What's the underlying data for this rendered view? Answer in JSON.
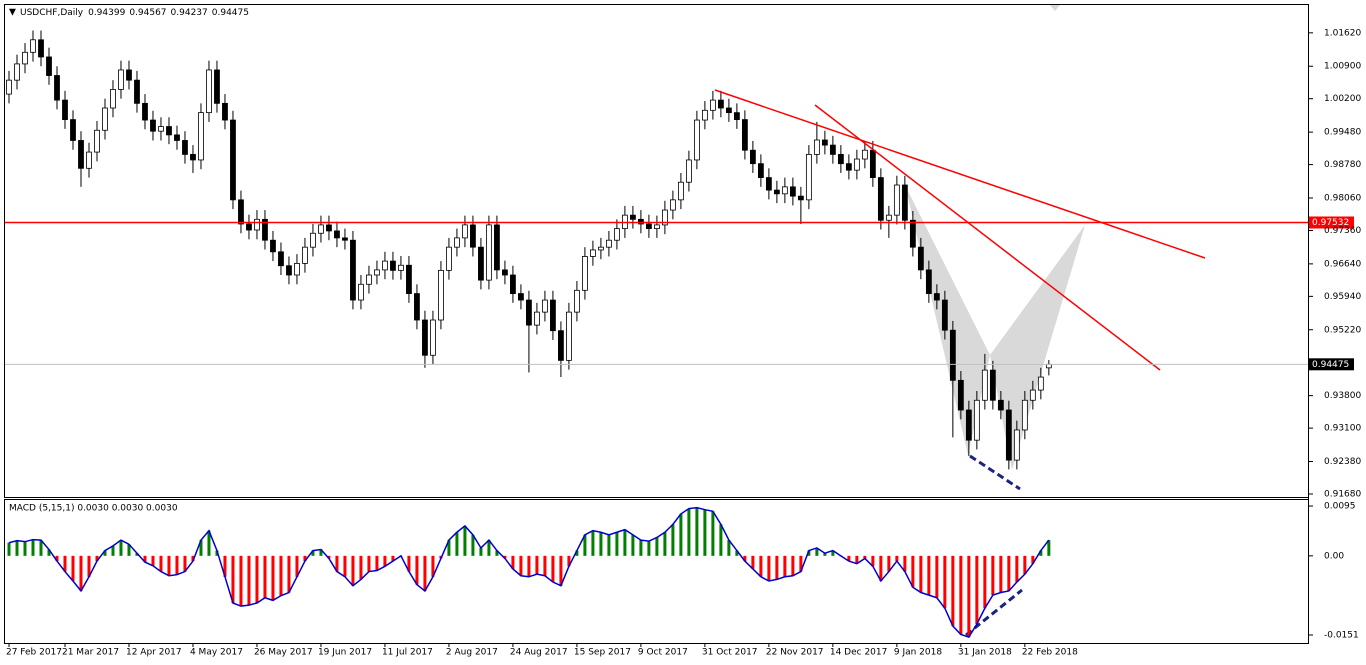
{
  "chart_data": [
    {
      "type": "candlestick",
      "symbol": "USDCHF,Daily",
      "up_color": "#ffffff",
      "down_color": "#000000",
      "outline_color": "#000000",
      "level_color": "#ff0000",
      "levels": [
        0.97532
      ],
      "xlim": [
        -0.5,
        162.4
      ],
      "ylim": [
        0.91615,
        1.0222
      ],
      "yticks": [
        {
          "value": 1.0162,
          "label": "1.01620"
        },
        {
          "value": 1.009,
          "label": "1.00900"
        },
        {
          "value": 1.002,
          "label": "1.00200"
        },
        {
          "value": 0.9948,
          "label": "0.99480"
        },
        {
          "value": 0.9878,
          "label": "0.98780"
        },
        {
          "value": 0.9806,
          "label": "0.98060"
        },
        {
          "value": 0.9736,
          "label": "0.97360"
        },
        {
          "value": 0.9664,
          "label": "0.96640"
        },
        {
          "value": 0.9594,
          "label": "0.95940"
        },
        {
          "value": 0.9522,
          "label": "0.95220"
        },
        {
          "value": 0.938,
          "label": "0.93800"
        },
        {
          "value": 0.931,
          "label": "0.93100"
        },
        {
          "value": 0.9238,
          "label": "0.92380"
        },
        {
          "value": 0.9168,
          "label": "0.91680"
        }
      ],
      "ohlc": [
        [
          1.003,
          1.008,
          1.001,
          1.006
        ],
        [
          1.006,
          1.0115,
          1.004,
          1.0095
        ],
        [
          1.0095,
          1.014,
          1.0075,
          1.012
        ],
        [
          1.012,
          1.0167,
          1.01,
          1.0147
        ],
        [
          1.0147,
          1.0167,
          1.009,
          1.011
        ],
        [
          1.011,
          1.013,
          1.005,
          1.007
        ],
        [
          1.007,
          1.009,
          0.9997,
          1.0017
        ],
        [
          1.0017,
          1.0037,
          0.9955,
          0.9975
        ],
        [
          0.9975,
          0.9995,
          0.991,
          0.993
        ],
        [
          0.993,
          0.995,
          0.983,
          0.987
        ],
        [
          0.987,
          0.9925,
          0.985,
          0.9905
        ],
        [
          0.9905,
          0.9972,
          0.9885,
          0.9952
        ],
        [
          0.9952,
          1.002,
          0.9932,
          1.0
        ],
        [
          1.0,
          1.006,
          0.998,
          1.004
        ],
        [
          1.004,
          1.0102,
          1.002,
          1.0082
        ],
        [
          1.0082,
          1.0102,
          1.004,
          1.006
        ],
        [
          1.006,
          1.008,
          0.999,
          1.001
        ],
        [
          1.001,
          1.003,
          0.9954,
          0.9974
        ],
        [
          0.9974,
          0.9994,
          0.993,
          0.995
        ],
        [
          0.995,
          0.998,
          0.993,
          0.996
        ],
        [
          0.996,
          0.998,
          0.9922,
          0.9942
        ],
        [
          0.9942,
          0.9962,
          0.991,
          0.993
        ],
        [
          0.993,
          0.995,
          0.988,
          0.99
        ],
        [
          0.99,
          0.992,
          0.986,
          0.9888
        ],
        [
          0.9888,
          1.001,
          0.9868,
          0.999
        ],
        [
          0.999,
          1.0102,
          0.997,
          1.0082
        ],
        [
          1.0082,
          1.0102,
          0.999,
          1.001
        ],
        [
          1.001,
          1.003,
          0.9954,
          0.9974
        ],
        [
          0.9974,
          0.9994,
          0.9782,
          0.9802
        ],
        [
          0.9802,
          0.9822,
          0.973,
          0.975
        ],
        [
          0.975,
          0.977,
          0.9717,
          0.9737
        ],
        [
          0.9737,
          0.978,
          0.9717,
          0.976
        ],
        [
          0.976,
          0.978,
          0.9695,
          0.9715
        ],
        [
          0.9715,
          0.9735,
          0.967,
          0.969
        ],
        [
          0.969,
          0.971,
          0.964,
          0.966
        ],
        [
          0.966,
          0.968,
          0.962,
          0.964
        ],
        [
          0.964,
          0.9685,
          0.962,
          0.9665
        ],
        [
          0.9665,
          0.972,
          0.9645,
          0.97
        ],
        [
          0.97,
          0.975,
          0.968,
          0.973
        ],
        [
          0.973,
          0.9768,
          0.971,
          0.9748
        ],
        [
          0.9748,
          0.9768,
          0.9715,
          0.9735
        ],
        [
          0.9735,
          0.9755,
          0.97,
          0.972
        ],
        [
          0.972,
          0.974,
          0.9695,
          0.9715
        ],
        [
          0.9715,
          0.9735,
          0.9566,
          0.9586
        ],
        [
          0.9586,
          0.964,
          0.9566,
          0.962
        ],
        [
          0.962,
          0.966,
          0.96,
          0.964
        ],
        [
          0.964,
          0.9671,
          0.962,
          0.9651
        ],
        [
          0.9651,
          0.969,
          0.9631,
          0.967
        ],
        [
          0.967,
          0.969,
          0.963,
          0.965
        ],
        [
          0.965,
          0.9681,
          0.963,
          0.9661
        ],
        [
          0.9661,
          0.9681,
          0.958,
          0.96
        ],
        [
          0.96,
          0.962,
          0.9523,
          0.9543
        ],
        [
          0.9543,
          0.9563,
          0.944,
          0.9467
        ],
        [
          0.9467,
          0.9563,
          0.9447,
          0.9543
        ],
        [
          0.9543,
          0.967,
          0.9523,
          0.965
        ],
        [
          0.965,
          0.972,
          0.963,
          0.97
        ],
        [
          0.97,
          0.974,
          0.968,
          0.972
        ],
        [
          0.972,
          0.9768,
          0.97,
          0.9748
        ],
        [
          0.9748,
          0.9768,
          0.968,
          0.97
        ],
        [
          0.97,
          0.972,
          0.9609,
          0.9629
        ],
        [
          0.9629,
          0.9768,
          0.9609,
          0.9748
        ],
        [
          0.9748,
          0.9768,
          0.9631,
          0.9651
        ],
        [
          0.9651,
          0.9671,
          0.962,
          0.964
        ],
        [
          0.964,
          0.966,
          0.958,
          0.96
        ],
        [
          0.96,
          0.962,
          0.9566,
          0.9586
        ],
        [
          0.9586,
          0.9606,
          0.943,
          0.9532
        ],
        [
          0.9532,
          0.958,
          0.9512,
          0.956
        ],
        [
          0.956,
          0.9606,
          0.954,
          0.9586
        ],
        [
          0.9586,
          0.9606,
          0.95,
          0.952
        ],
        [
          0.952,
          0.954,
          0.942,
          0.9456
        ],
        [
          0.9456,
          0.958,
          0.9436,
          0.956
        ],
        [
          0.956,
          0.9627,
          0.954,
          0.9607
        ],
        [
          0.9607,
          0.97,
          0.9587,
          0.968
        ],
        [
          0.968,
          0.9714,
          0.966,
          0.9694
        ],
        [
          0.9694,
          0.972,
          0.9674,
          0.97
        ],
        [
          0.97,
          0.9735,
          0.968,
          0.9715
        ],
        [
          0.9715,
          0.976,
          0.9695,
          0.974
        ],
        [
          0.974,
          0.9789,
          0.972,
          0.9769
        ],
        [
          0.9769,
          0.9789,
          0.974,
          0.976
        ],
        [
          0.976,
          0.978,
          0.973,
          0.975
        ],
        [
          0.975,
          0.977,
          0.972,
          0.974
        ],
        [
          0.974,
          0.9768,
          0.972,
          0.9748
        ],
        [
          0.9748,
          0.98,
          0.9728,
          0.978
        ],
        [
          0.978,
          0.9822,
          0.976,
          0.9802
        ],
        [
          0.9802,
          0.986,
          0.9782,
          0.984
        ],
        [
          0.984,
          0.9908,
          0.982,
          0.9888
        ],
        [
          0.9888,
          0.9994,
          0.9868,
          0.9974
        ],
        [
          0.9974,
          1.0015,
          0.9954,
          0.9995
        ],
        [
          0.9995,
          1.0037,
          0.9975,
          1.0017
        ],
        [
          1.0017,
          1.0037,
          0.998,
          1.0
        ],
        [
          1.0,
          1.002,
          0.997,
          0.999
        ],
        [
          0.999,
          1.001,
          0.9955,
          0.9975
        ],
        [
          0.9975,
          0.9995,
          0.9889,
          0.9909
        ],
        [
          0.9909,
          0.9929,
          0.986,
          0.988
        ],
        [
          0.988,
          0.99,
          0.983,
          0.985
        ],
        [
          0.985,
          0.987,
          0.9803,
          0.9823
        ],
        [
          0.9823,
          0.9843,
          0.9795,
          0.9815
        ],
        [
          0.9815,
          0.985,
          0.9795,
          0.983
        ],
        [
          0.983,
          0.985,
          0.979,
          0.981
        ],
        [
          0.981,
          0.983,
          0.975,
          0.9802
        ],
        [
          0.9802,
          0.992,
          0.9782,
          0.99
        ],
        [
          0.99,
          0.997,
          0.988,
          0.9931
        ],
        [
          0.9931,
          0.9951,
          0.99,
          0.992
        ],
        [
          0.992,
          0.994,
          0.988,
          0.99
        ],
        [
          0.99,
          0.992,
          0.986,
          0.988
        ],
        [
          0.988,
          0.99,
          0.9846,
          0.9866
        ],
        [
          0.9866,
          0.991,
          0.9846,
          0.989
        ],
        [
          0.989,
          0.9929,
          0.987,
          0.9909
        ],
        [
          0.9909,
          0.9929,
          0.983,
          0.985
        ],
        [
          0.985,
          0.987,
          0.9738,
          0.9758
        ],
        [
          0.9758,
          0.9789,
          0.972,
          0.9769
        ],
        [
          0.9769,
          0.9854,
          0.9749,
          0.9834
        ],
        [
          0.9834,
          0.9854,
          0.9738,
          0.9758
        ],
        [
          0.9758,
          0.9778,
          0.968,
          0.97
        ],
        [
          0.97,
          0.972,
          0.9631,
          0.9651
        ],
        [
          0.9651,
          0.9671,
          0.958,
          0.96
        ],
        [
          0.96,
          0.962,
          0.9566,
          0.9586
        ],
        [
          0.9586,
          0.9606,
          0.9501,
          0.9521
        ],
        [
          0.9521,
          0.9541,
          0.929,
          0.9413
        ],
        [
          0.9413,
          0.9433,
          0.9329,
          0.9349
        ],
        [
          0.9349,
          0.9369,
          0.925,
          0.9284
        ],
        [
          0.9284,
          0.939,
          0.9264,
          0.937
        ],
        [
          0.937,
          0.947,
          0.935,
          0.9435
        ],
        [
          0.9435,
          0.9455,
          0.935,
          0.937
        ],
        [
          0.937,
          0.939,
          0.9329,
          0.9349
        ],
        [
          0.9349,
          0.9369,
          0.9221,
          0.9241
        ],
        [
          0.9241,
          0.9326,
          0.9221,
          0.9306
        ],
        [
          0.9306,
          0.939,
          0.9286,
          0.937
        ],
        [
          0.937,
          0.9412,
          0.935,
          0.9392
        ],
        [
          0.9392,
          0.944,
          0.9372,
          0.942
        ],
        [
          0.94399,
          0.94567,
          0.94237,
          0.94475
        ]
      ]
    },
    {
      "type": "histogram",
      "title": "MACD (5,15,1) 0.0030 0.0030 0.0030",
      "up_color": "#008000",
      "down_color": "#ff0000",
      "line_color": "#0000cd",
      "xlim": [
        -0.5,
        162.4
      ],
      "ylim": [
        -0.01663,
        0.01065
      ],
      "yticks": [
        0.0095,
        {
          "value": 0,
          "label": "0.00"
        },
        -0.0151
      ],
      "xticks": [
        {
          "value": 0,
          "label": "27 Feb 2017"
        },
        {
          "value": 7,
          "label": "21 Mar 2017"
        },
        {
          "value": 15,
          "label": "12 Apr 2017"
        },
        {
          "value": 23,
          "label": "4 May 2017"
        },
        {
          "value": 31,
          "label": "26 May 2017"
        },
        {
          "value": 39,
          "label": "19 Jun 2017"
        },
        {
          "value": 47,
          "label": "11 Jul 2017"
        },
        {
          "value": 55,
          "label": "2 Aug 2017"
        },
        {
          "value": 63,
          "label": "24 Aug 2017"
        },
        {
          "value": 71,
          "label": "15 Sep 2017"
        },
        {
          "value": 79,
          "label": "9 Oct 2017"
        },
        {
          "value": 87,
          "label": "31 Oct 2017"
        },
        {
          "value": 95,
          "label": "22 Nov 2017"
        },
        {
          "value": 103,
          "label": "14 Dec 2017"
        },
        {
          "value": 111,
          "label": "9 Jan 2018"
        },
        {
          "value": 119,
          "label": "31 Jan 2018"
        },
        {
          "value": 127,
          "label": "22 Feb 2018"
        }
      ],
      "values": [
        0.0025,
        0.0029,
        0.0027,
        0.0031,
        0.003,
        0.0012,
        -0.001,
        -0.003,
        -0.0048,
        -0.0067,
        -0.004,
        -0.001,
        0.001,
        0.0019,
        0.003,
        0.0022,
        0.0005,
        -0.0012,
        -0.0019,
        -0.003,
        -0.0038,
        -0.0036,
        -0.003,
        -0.001,
        0.003,
        0.0048,
        0.001,
        -0.004,
        -0.009,
        -0.0096,
        -0.0094,
        -0.009,
        -0.008,
        -0.0085,
        -0.0076,
        -0.007,
        -0.004,
        -0.001,
        0.001,
        0.0012,
        -0.0005,
        -0.003,
        -0.004,
        -0.0057,
        -0.0045,
        -0.003,
        -0.0028,
        -0.002,
        -0.001,
        0.0,
        -0.003,
        -0.0055,
        -0.0067,
        -0.004,
        -0.0005,
        0.003,
        0.0045,
        0.0057,
        0.004,
        0.0015,
        0.003,
        0.001,
        -0.0005,
        -0.0025,
        -0.0038,
        -0.004,
        -0.0035,
        -0.0038,
        -0.005,
        -0.0057,
        -0.002,
        0.001,
        0.004,
        0.0048,
        0.0045,
        0.004,
        0.0045,
        0.005,
        0.004,
        0.003,
        0.0028,
        0.0035,
        0.0045,
        0.006,
        0.008,
        0.009,
        0.0092,
        0.0088,
        0.0085,
        0.006,
        0.003,
        0.001,
        -0.001,
        -0.0025,
        -0.004,
        -0.0048,
        -0.0045,
        -0.004,
        -0.0038,
        -0.003,
        0.001,
        0.0015,
        0.0005,
        0.001,
        0.0,
        -0.001,
        -0.0015,
        -0.0005,
        -0.002,
        -0.0048,
        -0.003,
        -0.001,
        -0.003,
        -0.006,
        -0.007,
        -0.0075,
        -0.008,
        -0.01,
        -0.0134,
        -0.015,
        -0.0155,
        -0.013,
        -0.01,
        -0.0075,
        -0.007,
        -0.0067,
        -0.005,
        -0.0035,
        -0.0015,
        0.001,
        0.003
      ]
    }
  ]
}
